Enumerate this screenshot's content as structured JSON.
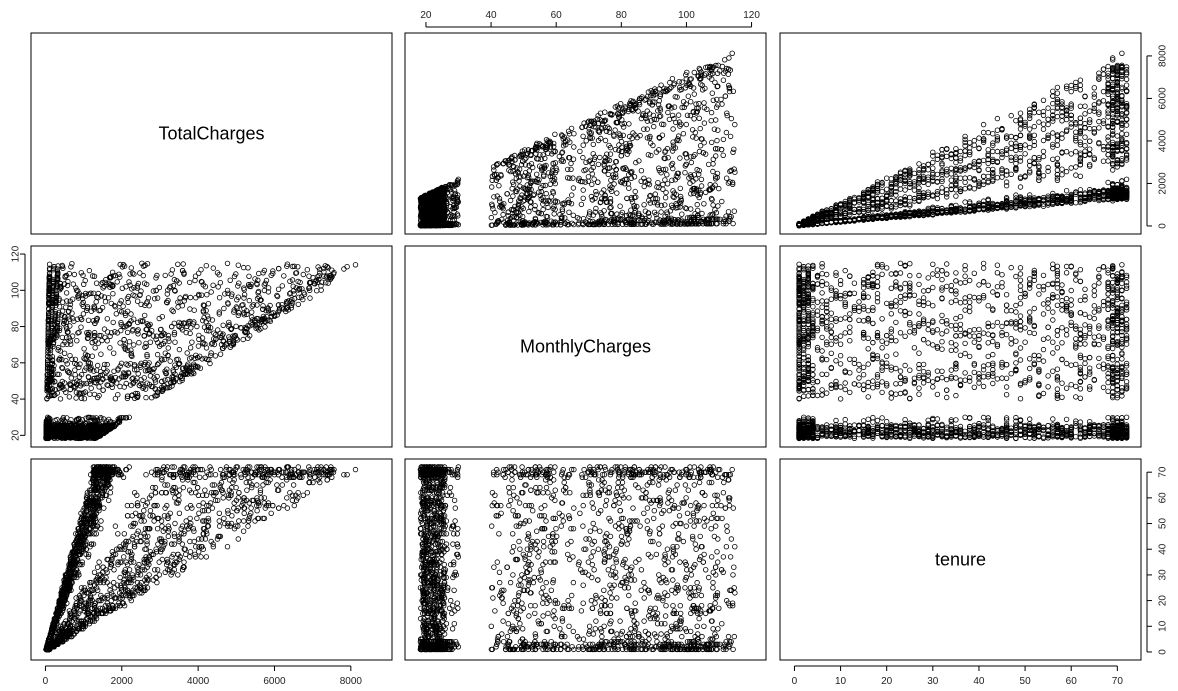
{
  "chart_data": {
    "type": "scatter",
    "variables": [
      "TotalCharges",
      "MonthlyCharges",
      "tenure"
    ],
    "ranges": {
      "TotalCharges": [
        0,
        8700
      ],
      "MonthlyCharges": [
        18,
        120
      ],
      "tenure": [
        0,
        72
      ]
    },
    "ticks": {
      "TotalCharges": [
        "0",
        "2000",
        "4000",
        "6000",
        "8000"
      ],
      "MonthlyCharges": [
        "20",
        "40",
        "60",
        "80",
        "100",
        "120"
      ],
      "tenure": [
        "0",
        "10",
        "20",
        "30",
        "40",
        "50",
        "60",
        "70"
      ]
    },
    "sample_points": {
      "description": "",
      "tenure_monthly_pairs": [
        [
          1,
          20
        ],
        [
          1,
          25
        ],
        [
          1,
          45
        ],
        [
          1,
          70
        ],
        [
          1,
          75
        ],
        [
          1,
          80
        ],
        [
          1,
          85
        ],
        [
          1,
          90
        ],
        [
          1,
          95
        ],
        [
          2,
          20
        ],
        [
          2,
          50
        ],
        [
          2,
          70
        ],
        [
          2,
          80
        ],
        [
          2,
          85
        ],
        [
          2,
          95
        ],
        [
          3,
          20
        ],
        [
          3,
          45
        ],
        [
          3,
          75
        ],
        [
          3,
          90
        ],
        [
          3,
          100
        ],
        [
          5,
          20
        ],
        [
          5,
          55
        ],
        [
          5,
          70
        ],
        [
          5,
          85
        ],
        [
          5,
          95
        ],
        [
          8,
          20
        ],
        [
          8,
          45
        ],
        [
          8,
          60
        ],
        [
          8,
          80
        ],
        [
          8,
          100
        ],
        [
          10,
          20
        ],
        [
          10,
          50
        ],
        [
          10,
          70
        ],
        [
          10,
          90
        ],
        [
          10,
          105
        ],
        [
          12,
          20
        ],
        [
          12,
          25
        ],
        [
          12,
          55
        ],
        [
          12,
          75
        ],
        [
          12,
          95
        ],
        [
          15,
          20
        ],
        [
          15,
          45
        ],
        [
          15,
          65
        ],
        [
          15,
          85
        ],
        [
          15,
          100
        ],
        [
          18,
          20
        ],
        [
          18,
          55
        ],
        [
          18,
          80
        ],
        [
          18,
          100
        ],
        [
          18,
          110
        ],
        [
          20,
          20
        ],
        [
          20,
          25
        ],
        [
          20,
          60
        ],
        [
          20,
          85
        ],
        [
          20,
          105
        ],
        [
          24,
          20
        ],
        [
          24,
          50
        ],
        [
          24,
          75
        ],
        [
          24,
          95
        ],
        [
          24,
          110
        ],
        [
          28,
          20
        ],
        [
          28,
          55
        ],
        [
          28,
          80
        ],
        [
          28,
          100
        ],
        [
          30,
          20
        ],
        [
          30,
          25
        ],
        [
          30,
          65
        ],
        [
          30,
          90
        ],
        [
          30,
          105
        ],
        [
          35,
          20
        ],
        [
          35,
          50
        ],
        [
          35,
          75
        ],
        [
          35,
          95
        ],
        [
          35,
          110
        ],
        [
          40,
          20
        ],
        [
          40,
          25
        ],
        [
          40,
          60
        ],
        [
          40,
          85
        ],
        [
          40,
          105
        ],
        [
          45,
          20
        ],
        [
          45,
          55
        ],
        [
          45,
          80
        ],
        [
          45,
          100
        ],
        [
          45,
          112
        ],
        [
          50,
          20
        ],
        [
          50,
          25
        ],
        [
          50,
          65
        ],
        [
          50,
          90
        ],
        [
          50,
          108
        ],
        [
          55,
          20
        ],
        [
          55,
          55
        ],
        [
          55,
          80
        ],
        [
          55,
          100
        ],
        [
          55,
          115
        ],
        [
          60,
          20
        ],
        [
          60,
          25
        ],
        [
          60,
          70
        ],
        [
          60,
          95
        ],
        [
          60,
          110
        ],
        [
          65,
          20
        ],
        [
          65,
          60
        ],
        [
          65,
          85
        ],
        [
          65,
          105
        ],
        [
          65,
          115
        ],
        [
          70,
          20
        ],
        [
          70,
          25
        ],
        [
          70,
          65
        ],
        [
          70,
          90
        ],
        [
          70,
          110
        ],
        [
          70,
          118
        ],
        [
          72,
          20
        ],
        [
          72,
          25
        ],
        [
          72,
          55
        ],
        [
          72,
          80
        ],
        [
          72,
          100
        ],
        [
          72,
          115
        ],
        [
          72,
          118
        ]
      ]
    }
  },
  "colors": {
    "point_stroke": "#000000",
    "frame": "#000000",
    "background": "#ffffff"
  }
}
